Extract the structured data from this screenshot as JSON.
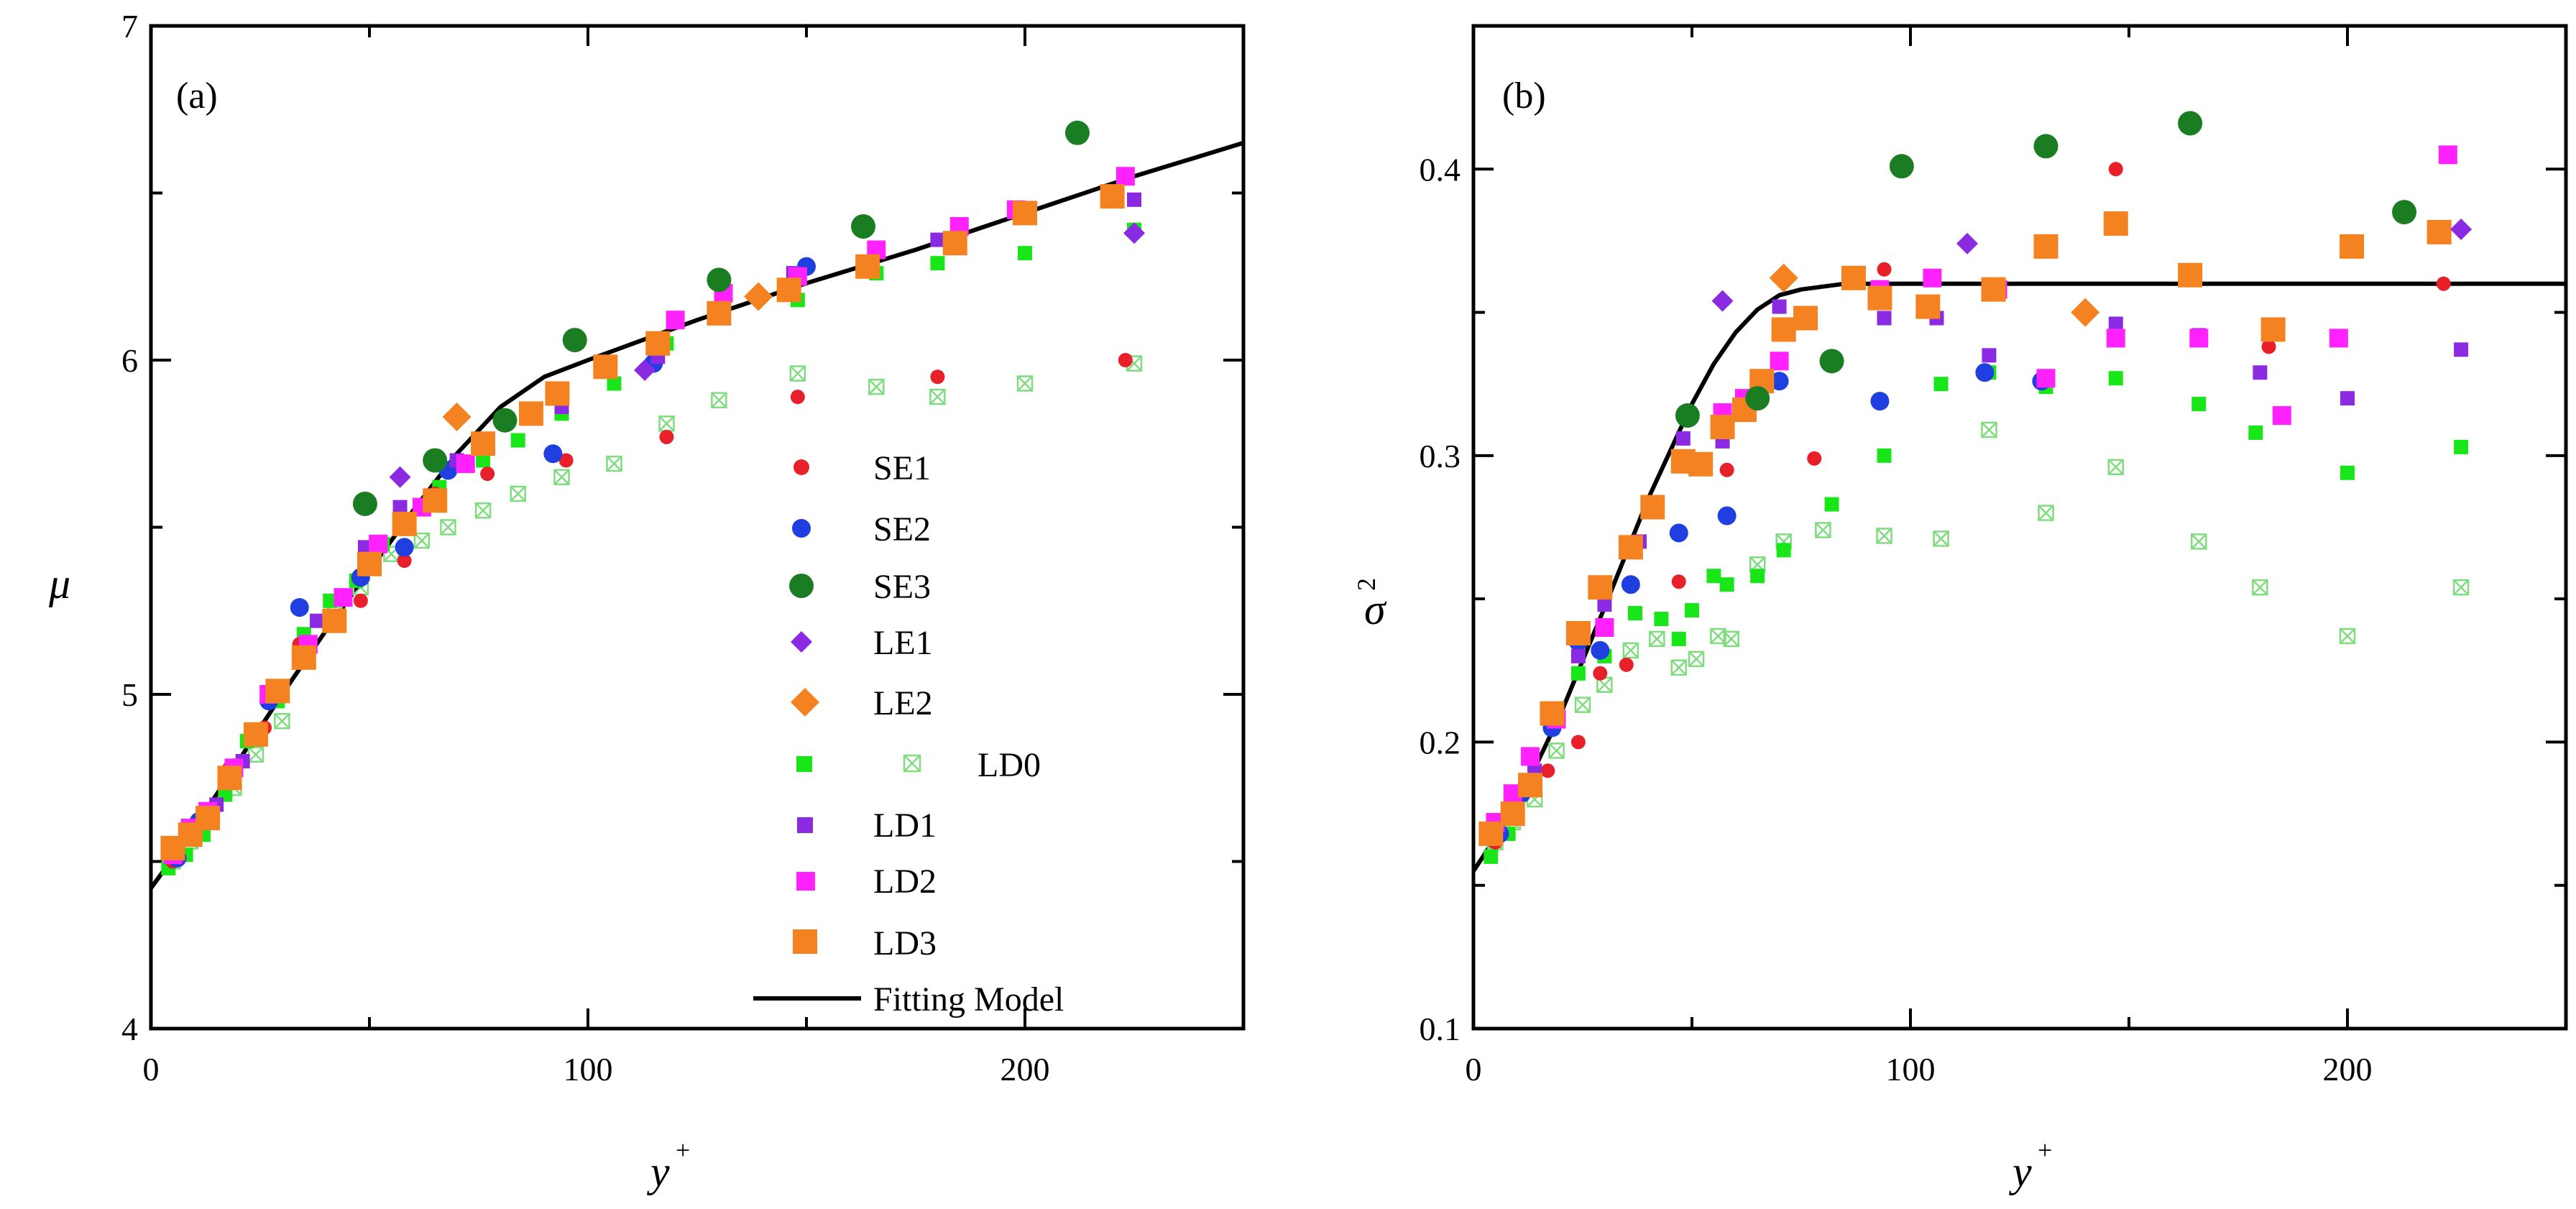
{
  "figure": {
    "panels": [
      {
        "label": "(a)"
      },
      {
        "label": "(b)"
      }
    ]
  },
  "series_style": {
    "SE1": {
      "color": "#e8202a",
      "marker": "circle-small"
    },
    "SE2": {
      "color": "#1f3fe0",
      "marker": "circle"
    },
    "SE3": {
      "color": "#1a7d22",
      "marker": "circle-large"
    },
    "LE1": {
      "color": "#8a2be2",
      "marker": "diamond"
    },
    "LE2": {
      "color": "#f58220",
      "marker": "diamond-large"
    },
    "LD0-filled": {
      "color": "#19e619",
      "marker": "square-small"
    },
    "LD0-open": {
      "color": "#7fdc7f",
      "marker": "square-open-crossed"
    },
    "LD1": {
      "color": "#8a2be2",
      "marker": "square-small"
    },
    "LD2": {
      "color": "#ff22ff",
      "marker": "square"
    },
    "LD3": {
      "color": "#f58220",
      "marker": "square-large"
    },
    "Fitting Model": {
      "color": "#000000",
      "marker": "line"
    }
  },
  "chart_data": [
    {
      "type": "scatter",
      "panel": "(a)",
      "xlabel": "y",
      "xlabel_sup": "+",
      "ylabel": "μ",
      "xlim": [
        0,
        250
      ],
      "ylim": [
        4,
        7
      ],
      "xticks": [
        "0",
        "100",
        "200"
      ],
      "yticks": [
        "4",
        "5",
        "6",
        "7"
      ],
      "xtick_values": [
        0,
        100,
        200
      ],
      "ytick_values": [
        4,
        5,
        6,
        7
      ],
      "legend": {
        "position": "lower-right",
        "entries": [
          "SE1",
          "SE2",
          "SE3",
          "LE1",
          "LE2",
          "LD0",
          "LD1",
          "LD2",
          "LD3",
          "Fitting Model"
        ]
      },
      "fit": {
        "x": [
          0,
          10,
          20,
          30,
          40,
          50,
          60,
          70,
          80,
          90,
          100,
          125,
          150,
          175,
          200,
          225,
          250
        ],
        "y": [
          4.42,
          4.6,
          4.8,
          5.0,
          5.19,
          5.37,
          5.55,
          5.72,
          5.86,
          5.95,
          6.0,
          6.12,
          6.23,
          6.33,
          6.44,
          6.55,
          6.65
        ]
      },
      "series": [
        {
          "name": "SE1",
          "x": [
            5,
            10,
            18,
            26,
            34,
            48,
            58,
            65,
            77,
            95,
            118,
            148,
            180,
            223
          ],
          "y": [
            4.5,
            4.6,
            4.78,
            4.9,
            5.15,
            5.28,
            5.4,
            5.6,
            5.66,
            5.7,
            5.77,
            5.89,
            5.95,
            6.0
          ]
        },
        {
          "name": "SE2",
          "x": [
            6,
            11,
            19,
            27,
            34,
            48,
            58,
            68,
            92,
            115,
            150
          ],
          "y": [
            4.51,
            4.62,
            4.78,
            4.98,
            5.26,
            5.35,
            5.44,
            5.67,
            5.72,
            5.99,
            6.28
          ]
        },
        {
          "name": "SE3",
          "x": [
            49,
            65,
            81,
            97,
            130,
            163,
            212
          ],
          "y": [
            5.57,
            5.7,
            5.82,
            6.06,
            6.24,
            6.4,
            6.68
          ]
        },
        {
          "name": "LE1",
          "x": [
            57,
            113,
            225
          ],
          "y": [
            5.65,
            5.97,
            6.38
          ]
        },
        {
          "name": "LE2",
          "x": [
            70,
            139
          ],
          "y": [
            5.83,
            6.19
          ]
        },
        {
          "name": "LD0-filled",
          "x": [
            4,
            8,
            12,
            17,
            22,
            29,
            35,
            41,
            47,
            53,
            58,
            66,
            76,
            84,
            94,
            106,
            118,
            130,
            148,
            166,
            180,
            200,
            225
          ],
          "y": [
            4.48,
            4.52,
            4.58,
            4.7,
            4.86,
            4.98,
            5.18,
            5.28,
            5.34,
            5.45,
            5.5,
            5.62,
            5.7,
            5.76,
            5.84,
            5.93,
            6.05,
            6.13,
            6.18,
            6.26,
            6.29,
            6.32,
            6.39
          ]
        },
        {
          "name": "LD0-open",
          "x": [
            5,
            9,
            14,
            19,
            24,
            30,
            35,
            42,
            48,
            55,
            62,
            68,
            76,
            84,
            94,
            106,
            118,
            130,
            148,
            166,
            180,
            200,
            225
          ],
          "y": [
            4.5,
            4.56,
            4.64,
            4.72,
            4.82,
            4.92,
            5.12,
            5.24,
            5.32,
            5.42,
            5.46,
            5.5,
            5.55,
            5.6,
            5.65,
            5.69,
            5.81,
            5.88,
            5.96,
            5.92,
            5.89,
            5.93,
            5.99
          ]
        },
        {
          "name": "LD1",
          "x": [
            6,
            10,
            15,
            21,
            29,
            38,
            49,
            57,
            70,
            94,
            116,
            147,
            180,
            200,
            225
          ],
          "y": [
            4.52,
            4.58,
            4.67,
            4.8,
            5.02,
            5.22,
            5.44,
            5.56,
            5.7,
            5.86,
            6.01,
            6.26,
            6.36,
            6.43,
            6.48
          ]
        },
        {
          "name": "LD2",
          "x": [
            5,
            9,
            13,
            19,
            27,
            36,
            44,
            52,
            62,
            72,
            93,
            120,
            131,
            148,
            166,
            185,
            198,
            223
          ],
          "y": [
            4.52,
            4.6,
            4.65,
            4.78,
            5.0,
            5.15,
            5.29,
            5.45,
            5.56,
            5.69,
            5.9,
            6.12,
            6.2,
            6.25,
            6.33,
            6.4,
            6.45,
            6.55
          ]
        },
        {
          "name": "LD3",
          "x": [
            5,
            9,
            13,
            18,
            24,
            29,
            35,
            42,
            50,
            58,
            65,
            76,
            87,
            93,
            104,
            116,
            130,
            146,
            164,
            184,
            200,
            220
          ],
          "y": [
            4.54,
            4.58,
            4.63,
            4.75,
            4.88,
            5.01,
            5.11,
            5.22,
            5.39,
            5.51,
            5.58,
            5.75,
            5.84,
            5.9,
            5.98,
            6.05,
            6.14,
            6.21,
            6.28,
            6.35,
            6.44,
            6.49
          ]
        }
      ]
    },
    {
      "type": "scatter",
      "panel": "(b)",
      "xlabel": "y",
      "xlabel_sup": "+",
      "ylabel": "σ",
      "ylabel_sup": "2",
      "xlim": [
        0,
        250
      ],
      "ylim": [
        0.1,
        0.45
      ],
      "xticks": [
        "0",
        "100",
        "200"
      ],
      "yticks": [
        "0.1",
        "0.2",
        "0.3",
        "0.4"
      ],
      "xtick_values": [
        0,
        100,
        200
      ],
      "ytick_values": [
        0.1,
        0.2,
        0.3,
        0.4
      ],
      "fit": {
        "x": [
          0,
          10,
          20,
          30,
          40,
          50,
          55,
          60,
          65,
          70,
          75,
          80,
          85,
          90,
          100,
          150,
          200,
          250
        ],
        "y": [
          0.155,
          0.178,
          0.21,
          0.247,
          0.285,
          0.318,
          0.332,
          0.343,
          0.351,
          0.356,
          0.358,
          0.359,
          0.36,
          0.36,
          0.36,
          0.36,
          0.36,
          0.36
        ]
      },
      "series": [
        {
          "name": "SE1",
          "x": [
            5,
            10,
            17,
            24,
            29,
            35,
            47,
            58,
            78,
            94,
            147,
            182,
            222
          ],
          "y": [
            0.165,
            0.178,
            0.19,
            0.2,
            0.224,
            0.227,
            0.256,
            0.295,
            0.299,
            0.365,
            0.4,
            0.338,
            0.36
          ]
        },
        {
          "name": "SE2",
          "x": [
            6,
            11,
            18,
            24,
            29,
            36,
            47,
            58,
            70,
            93,
            117,
            130
          ],
          "y": [
            0.168,
            0.182,
            0.205,
            0.235,
            0.232,
            0.255,
            0.273,
            0.279,
            0.326,
            0.319,
            0.329,
            0.326
          ]
        },
        {
          "name": "SE3",
          "x": [
            49,
            65,
            82,
            98,
            131,
            164,
            213
          ],
          "y": [
            0.314,
            0.32,
            0.333,
            0.401,
            0.408,
            0.416,
            0.385
          ]
        },
        {
          "name": "LE1",
          "x": [
            57,
            113,
            226
          ],
          "y": [
            0.354,
            0.374,
            0.379
          ]
        },
        {
          "name": "LE2",
          "x": [
            71,
            140
          ],
          "y": [
            0.362,
            0.35
          ]
        },
        {
          "name": "LD0-filled",
          "x": [
            4,
            8,
            13,
            18,
            24,
            30,
            37,
            43,
            47,
            50,
            55,
            58,
            65,
            71,
            82,
            94,
            107,
            118,
            131,
            147,
            166,
            179,
            200,
            226
          ],
          "y": [
            0.16,
            0.168,
            0.185,
            0.205,
            0.224,
            0.23,
            0.245,
            0.243,
            0.236,
            0.246,
            0.258,
            0.255,
            0.258,
            0.267,
            0.283,
            0.3,
            0.325,
            0.329,
            0.324,
            0.327,
            0.318,
            0.308,
            0.294,
            0.303
          ]
        },
        {
          "name": "LD0-open",
          "x": [
            5,
            9,
            14,
            19,
            25,
            30,
            36,
            42,
            47,
            51,
            56,
            59,
            65,
            71,
            80,
            94,
            107,
            118,
            131,
            147,
            166,
            180,
            200,
            226
          ],
          "y": [
            0.165,
            0.172,
            0.18,
            0.197,
            0.213,
            0.22,
            0.232,
            0.236,
            0.226,
            0.229,
            0.237,
            0.236,
            0.262,
            0.27,
            0.274,
            0.272,
            0.271,
            0.309,
            0.28,
            0.296,
            0.27,
            0.254,
            0.237,
            0.254
          ]
        },
        {
          "name": "LD1",
          "x": [
            5,
            9,
            14,
            19,
            24,
            30,
            38,
            48,
            57,
            70,
            94,
            106,
            118,
            147,
            166,
            180,
            200,
            226
          ],
          "y": [
            0.17,
            0.18,
            0.19,
            0.208,
            0.23,
            0.248,
            0.27,
            0.306,
            0.305,
            0.352,
            0.348,
            0.348,
            0.335,
            0.346,
            0.342,
            0.329,
            0.32,
            0.337
          ]
        },
        {
          "name": "LD2",
          "x": [
            5,
            9,
            13,
            19,
            24,
            30,
            36,
            48,
            57,
            62,
            70,
            93,
            105,
            120,
            131,
            147,
            166,
            185,
            198,
            223
          ],
          "y": [
            0.172,
            0.182,
            0.195,
            0.208,
            0.238,
            0.24,
            0.268,
            0.298,
            0.315,
            0.32,
            0.333,
            0.358,
            0.362,
            0.358,
            0.327,
            0.341,
            0.341,
            0.314,
            0.341,
            0.405
          ]
        },
        {
          "name": "LD3",
          "x": [
            4,
            9,
            13,
            18,
            24,
            29,
            36,
            41,
            48,
            52,
            57,
            62,
            66,
            71,
            76,
            87,
            93,
            104,
            119,
            131,
            147,
            164,
            183,
            201,
            221
          ],
          "y": [
            0.168,
            0.175,
            0.185,
            0.21,
            0.238,
            0.254,
            0.268,
            0.282,
            0.298,
            0.297,
            0.31,
            0.316,
            0.326,
            0.344,
            0.348,
            0.362,
            0.355,
            0.352,
            0.358,
            0.373,
            0.381,
            0.363,
            0.344,
            0.373,
            0.378
          ]
        }
      ]
    }
  ]
}
